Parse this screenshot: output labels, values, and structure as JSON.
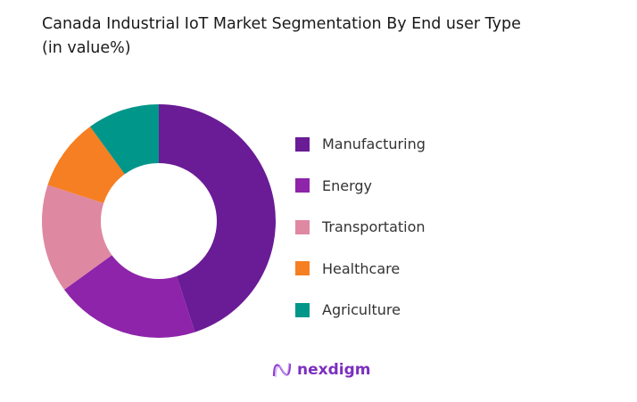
{
  "chart_data": {
    "type": "pie",
    "title": "Canada Industrial IoT  Market Segmentation By End user Type",
    "subtitle": "(in value%)",
    "categories": [
      "Manufacturing",
      "Energy",
      "Transportation",
      "Healthcare",
      "Agriculture"
    ],
    "values": [
      45,
      20,
      15,
      10,
      10
    ],
    "colors": [
      "#6a1b96",
      "#8e24aa",
      "#df88a2",
      "#f57f22",
      "#00968a"
    ],
    "legend_placement": "right",
    "donut": true
  },
  "brand": {
    "name": "nexdigm",
    "color": "#7b2fbf"
  }
}
